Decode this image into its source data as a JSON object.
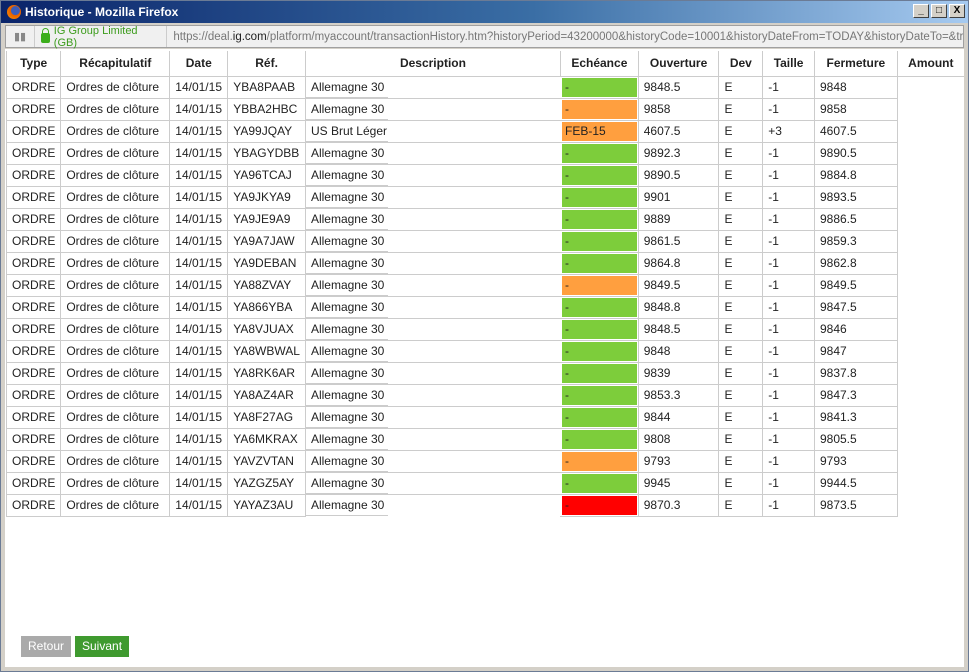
{
  "window": {
    "title": "Historique - Mozilla Firefox",
    "minimize": "_",
    "maximize": "□",
    "close": "X"
  },
  "address": {
    "identity": "IG Group Limited (GB)",
    "url_prefix": "https://deal.",
    "url_domain": "ig.com",
    "url_rest": "/platform/myaccount/transactionHistory.htm?historyPeriod=43200000&historyCode=10001&historyDateFrom=TODAY&historyDateTo=&transa"
  },
  "colors": {
    "green": "#7dcd3b",
    "orange": "#ff9f3f",
    "red": "#ff0000"
  },
  "columns": [
    "Type",
    "Récapitulatif",
    "Date",
    "Réf.",
    "Description",
    "Echéance",
    "Ouverture",
    "Dev",
    "Taille",
    "Fermeture",
    "Amount"
  ],
  "rows": [
    [
      "ORDRE",
      "Ordres de clôture",
      "14/01/15",
      "YBA8PAAB",
      "Allemagne 30",
      "-",
      "green",
      "9848.5",
      "E",
      "-1",
      "9848"
    ],
    [
      "ORDRE",
      "Ordres de clôture",
      "14/01/15",
      "YBBA2HBC",
      "Allemagne 30",
      "-",
      "orange",
      "9858",
      "E",
      "-1",
      "9858"
    ],
    [
      "ORDRE",
      "Ordres de clôture",
      "14/01/15",
      "YA99JQAY",
      "US Brut Léger",
      "FEB-15",
      "orange",
      "4607.5",
      "E",
      "+3",
      "4607.5"
    ],
    [
      "ORDRE",
      "Ordres de clôture",
      "14/01/15",
      "YBAGYDBB",
      "Allemagne 30",
      "-",
      "green",
      "9892.3",
      "E",
      "-1",
      "9890.5"
    ],
    [
      "ORDRE",
      "Ordres de clôture",
      "14/01/15",
      "YA96TCAJ",
      "Allemagne 30",
      "-",
      "green",
      "9890.5",
      "E",
      "-1",
      "9884.8"
    ],
    [
      "ORDRE",
      "Ordres de clôture",
      "14/01/15",
      "YA9JKYA9",
      "Allemagne 30",
      "-",
      "green",
      "9901",
      "E",
      "-1",
      "9893.5"
    ],
    [
      "ORDRE",
      "Ordres de clôture",
      "14/01/15",
      "YA9JE9A9",
      "Allemagne 30",
      "-",
      "green",
      "9889",
      "E",
      "-1",
      "9886.5"
    ],
    [
      "ORDRE",
      "Ordres de clôture",
      "14/01/15",
      "YA9A7JAW",
      "Allemagne 30",
      "-",
      "green",
      "9861.5",
      "E",
      "-1",
      "9859.3"
    ],
    [
      "ORDRE",
      "Ordres de clôture",
      "14/01/15",
      "YA9DEBAN",
      "Allemagne 30",
      "-",
      "green",
      "9864.8",
      "E",
      "-1",
      "9862.8"
    ],
    [
      "ORDRE",
      "Ordres de clôture",
      "14/01/15",
      "YA88ZVAY",
      "Allemagne 30",
      "-",
      "orange",
      "9849.5",
      "E",
      "-1",
      "9849.5"
    ],
    [
      "ORDRE",
      "Ordres de clôture",
      "14/01/15",
      "YA866YBA",
      "Allemagne 30",
      "-",
      "green",
      "9848.8",
      "E",
      "-1",
      "9847.5"
    ],
    [
      "ORDRE",
      "Ordres de clôture",
      "14/01/15",
      "YA8VJUAX",
      "Allemagne 30",
      "-",
      "green",
      "9848.5",
      "E",
      "-1",
      "9846"
    ],
    [
      "ORDRE",
      "Ordres de clôture",
      "14/01/15",
      "YA8WBWAL",
      "Allemagne 30",
      "-",
      "green",
      "9848",
      "E",
      "-1",
      "9847"
    ],
    [
      "ORDRE",
      "Ordres de clôture",
      "14/01/15",
      "YA8RK6AR",
      "Allemagne 30",
      "-",
      "green",
      "9839",
      "E",
      "-1",
      "9837.8"
    ],
    [
      "ORDRE",
      "Ordres de clôture",
      "14/01/15",
      "YA8AZ4AR",
      "Allemagne 30",
      "-",
      "green",
      "9853.3",
      "E",
      "-1",
      "9847.3"
    ],
    [
      "ORDRE",
      "Ordres de clôture",
      "14/01/15",
      "YA8F27AG",
      "Allemagne 30",
      "-",
      "green",
      "9844",
      "E",
      "-1",
      "9841.3"
    ],
    [
      "ORDRE",
      "Ordres de clôture",
      "14/01/15",
      "YA6MKRAX",
      "Allemagne 30",
      "-",
      "green",
      "9808",
      "E",
      "-1",
      "9805.5"
    ],
    [
      "ORDRE",
      "Ordres de clôture",
      "14/01/15",
      "YAVZVTAN",
      "Allemagne 30",
      "-",
      "orange",
      "9793",
      "E",
      "-1",
      "9793"
    ],
    [
      "ORDRE",
      "Ordres de clôture",
      "14/01/15",
      "YAZGZ5AY",
      "Allemagne 30",
      "-",
      "green",
      "9945",
      "E",
      "-1",
      "9944.5"
    ],
    [
      "ORDRE",
      "Ordres de clôture",
      "14/01/15",
      "YAYAZ3AU",
      "Allemagne 30",
      "-",
      "red",
      "9870.3",
      "E",
      "-1",
      "9873.5"
    ]
  ],
  "pager": {
    "prev": "Retour",
    "next": "Suivant"
  }
}
